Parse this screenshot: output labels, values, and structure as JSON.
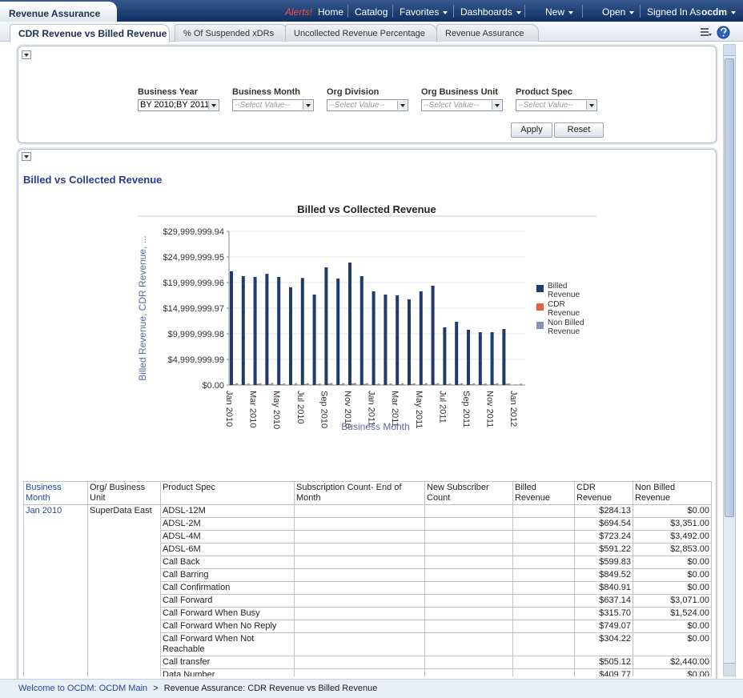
{
  "header": {
    "title": "Revenue Assurance",
    "nav": [
      "Alerts!",
      "Home",
      "Catalog",
      "Favorites",
      "Dashboards",
      "New",
      "Open",
      "Signed In As",
      "ocdm"
    ]
  },
  "tabs": [
    "CDR Revenue vs Billed Revenue",
    "% Of Suspended xDRs",
    "Uncollected Revenue Percentage",
    "Revenue Assurance"
  ],
  "filters": [
    {
      "label": "Business Year",
      "value": "BY 2010;BY 2011;"
    },
    {
      "label": "Business Month",
      "value": "--Select Value--"
    },
    {
      "label": "Org Division",
      "value": "--Select Value--"
    },
    {
      "label": "Org Business Unit",
      "value": "--Select Value--"
    },
    {
      "label": "Product Spec",
      "value": "--Select Value--"
    }
  ],
  "buttons": [
    "Apply",
    "Reset"
  ],
  "section_title": "Billed vs Collected Revenue",
  "chart_data": {
    "type": "bar",
    "title": "Billed vs Collected Revenue",
    "ylabel": "Billed Revenue, CDR Revenue, ...",
    "xlabel": "Business Month",
    "categories": [
      "Jan 2010",
      null,
      "Mar 2010",
      null,
      "May 2010",
      null,
      "Jul 2010",
      null,
      "Sep 2010",
      null,
      "Nov 2010",
      null,
      "Jan 2011",
      null,
      "Mar 2011",
      null,
      "May 2011",
      null,
      "Jul 2011",
      null,
      "Sep 2011",
      null,
      "Nov 2011",
      null,
      "Jan 2012"
    ],
    "series": [
      {
        "name": "Billed Revenue",
        "color": "#1f3a6b",
        "values": [
          22200000,
          21250000,
          21100000,
          21700000,
          21100000,
          19060000,
          20900000,
          17660000,
          22970000,
          20780000,
          23900000,
          21250000,
          18280000,
          17660000,
          17500000,
          16720000,
          18280000,
          19380000,
          11250000,
          12340000,
          10780000,
          10310000,
          10310000,
          10940000,
          50000
        ]
      },
      {
        "name": "CDR Revenue",
        "color": "#e2623c",
        "values": [
          150000,
          100000,
          250000,
          200000,
          150000,
          100000,
          200000,
          150000,
          250000,
          150000,
          300000,
          200000,
          150000,
          100000,
          150000,
          200000,
          150000,
          200000,
          150000,
          200000,
          150000,
          150000,
          200000,
          250000,
          0
        ]
      },
      {
        "name": "Non Billed Revenue",
        "color": "#8b8fb8",
        "values": [
          350000,
          300000,
          350000,
          400000,
          300000,
          350000,
          350000,
          300000,
          400000,
          350000,
          400000,
          350000,
          300000,
          300000,
          350000,
          300000,
          350000,
          350000,
          300000,
          350000,
          300000,
          300000,
          350000,
          300000,
          250000
        ]
      }
    ],
    "ylim": [
      0,
      29999999.94
    ],
    "yticks": [
      {
        "value": 0,
        "label": "$0.00"
      },
      {
        "value": 4999999.99,
        "label": "$4,999,999.99"
      },
      {
        "value": 9999999.98,
        "label": "$9,999,999.98"
      },
      {
        "value": 14999999.97,
        "label": "$14,999,999.97"
      },
      {
        "value": 19999999.96,
        "label": "$19,999,999.96"
      },
      {
        "value": 24999999.95,
        "label": "$24,999,999.95"
      },
      {
        "value": 29999999.94,
        "label": "$29,999,999.94"
      }
    ],
    "grid": true,
    "legend": "right"
  },
  "table": {
    "headers": [
      "Business Month",
      "Org/ Business Unit",
      "Product Spec",
      "Subscription Count- End of Month",
      "New Subscriber Count",
      "Billed Revenue",
      "CDR Revenue",
      "Non Billed Revenue"
    ],
    "business_month": "Jan 2010",
    "org_unit": "SuperData East",
    "rows": [
      {
        "product": "ADSL-12M",
        "cdr_revenue": "$284.13",
        "non_billed_revenue": "$0.00"
      },
      {
        "product": "ADSL-2M",
        "cdr_revenue": "$694.54",
        "non_billed_revenue": "$3,351.00"
      },
      {
        "product": "ADSL-4M",
        "cdr_revenue": "$723.24",
        "non_billed_revenue": "$3,492.00"
      },
      {
        "product": "ADSL-6M",
        "cdr_revenue": "$591.22",
        "non_billed_revenue": "$2,853.00"
      },
      {
        "product": "Call Back",
        "cdr_revenue": "$599.83",
        "non_billed_revenue": "$0.00"
      },
      {
        "product": "Call Barring",
        "cdr_revenue": "$849.52",
        "non_billed_revenue": "$0.00"
      },
      {
        "product": "Call Confirmation",
        "cdr_revenue": "$840.91",
        "non_billed_revenue": "$0.00"
      },
      {
        "product": "Call Forward",
        "cdr_revenue": "$637.14",
        "non_billed_revenue": "$3,071.00"
      },
      {
        "product": "Call Forward When Busy",
        "cdr_revenue": "$315.70",
        "non_billed_revenue": "$1,524.00"
      },
      {
        "product": "Call Forward When No Reply",
        "cdr_revenue": "$749.07",
        "non_billed_revenue": "$0.00"
      },
      {
        "product": "Call Forward When Not Reachable",
        "cdr_revenue": "$304.22",
        "non_billed_revenue": "$0.00"
      },
      {
        "product": "Call transfer",
        "cdr_revenue": "$505.12",
        "non_billed_revenue": "$2,440.00"
      },
      {
        "product": "Data Number",
        "cdr_revenue": "$409.77",
        "non_billed_revenue": "$0.00"
      }
    ]
  },
  "footer": {
    "link": "Welcome to OCDM: OCDM Main",
    "separator": ">",
    "current": "Revenue Assurance: CDR Revenue vs Billed Revenue"
  }
}
